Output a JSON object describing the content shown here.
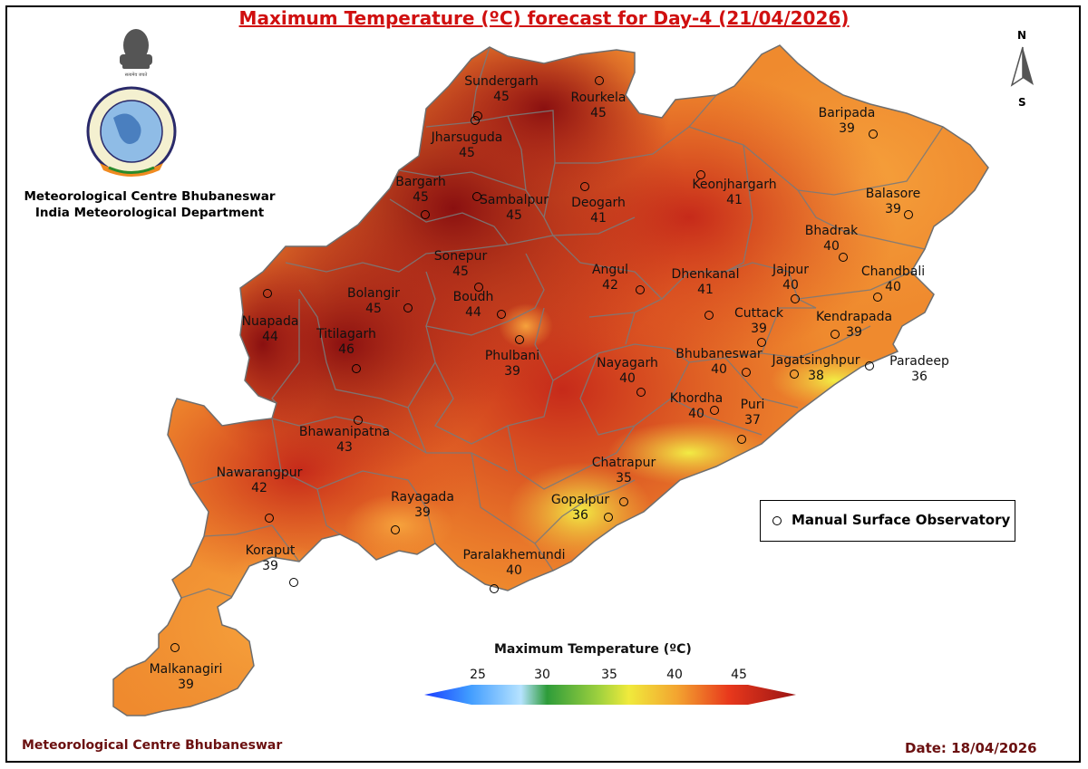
{
  "title": "Maximum Temperature (ºC) forecast for Day-4 (21/04/2026)",
  "org": {
    "line1": "Meteorological Centre Bhubaneswar",
    "line2": "India Meteorological Department"
  },
  "logo": {
    "text": "INDIA METEOROLOGICAL DEPARTMENT",
    "hindi_top": "भारत मौसम विज्ञान विभाग",
    "hindi_bottom": "आदित्यात् जायते वृष्टि:",
    "emblem_text": "सत्यमेव जयते"
  },
  "compass": {
    "north": "N",
    "south": "S"
  },
  "legend": {
    "observatory_label": "Manual Surface Observatory"
  },
  "colorbar": {
    "title": "Maximum Temperature (ºC)",
    "ticks": [
      "25",
      "30",
      "35",
      "40",
      "45"
    ],
    "colors": [
      "#1a3cff",
      "#3f9bff",
      "#b6e3ff",
      "#2e9c3a",
      "#f0ea3c",
      "#f3a430",
      "#e8381c",
      "#9a1414"
    ]
  },
  "cities": [
    {
      "name": "Sundergarh",
      "value": "45"
    },
    {
      "name": "Rourkela",
      "value": "45"
    },
    {
      "name": "Jharsuguda",
      "value": "45"
    },
    {
      "name": "Bargarh",
      "value": "45"
    },
    {
      "name": "Sambalpur",
      "value": "45"
    },
    {
      "name": "Deogarh",
      "value": "41"
    },
    {
      "name": "Keonjhargarh",
      "value": "41"
    },
    {
      "name": "Baripada",
      "value": "39"
    },
    {
      "name": "Balasore",
      "value": "39"
    },
    {
      "name": "Bhadrak",
      "value": "40"
    },
    {
      "name": "Chandbali",
      "value": "40"
    },
    {
      "name": "Sonepur",
      "value": "45"
    },
    {
      "name": "Angul",
      "value": "42"
    },
    {
      "name": "Dhenkanal",
      "value": "41"
    },
    {
      "name": "Jajpur",
      "value": "40"
    },
    {
      "name": "Kendrapada",
      "value": "39"
    },
    {
      "name": "Cuttack",
      "value": "39"
    },
    {
      "name": "Bolangir",
      "value": "45"
    },
    {
      "name": "Boudh",
      "value": "44"
    },
    {
      "name": "Nuapada",
      "value": "44"
    },
    {
      "name": "Titilagarh",
      "value": "46"
    },
    {
      "name": "Phulbani",
      "value": "39"
    },
    {
      "name": "Nayagarh",
      "value": "40"
    },
    {
      "name": "Bhubaneswar",
      "value": "40"
    },
    {
      "name": "Jagatsinghpur",
      "value": "38"
    },
    {
      "name": "Paradeep",
      "value": "36"
    },
    {
      "name": "Khordha",
      "value": "40"
    },
    {
      "name": "Puri",
      "value": "37"
    },
    {
      "name": "Bhawanipatna",
      "value": "43"
    },
    {
      "name": "Nawarangpur",
      "value": "42"
    },
    {
      "name": "Chatrapur",
      "value": "35"
    },
    {
      "name": "Rayagada",
      "value": "39"
    },
    {
      "name": "Gopalpur",
      "value": "36"
    },
    {
      "name": "Koraput",
      "value": "39"
    },
    {
      "name": "Paralakhemundi",
      "value": "40"
    },
    {
      "name": "Malkanagiri",
      "value": "39"
    }
  ],
  "footer": {
    "left": "Meteorological Centre Bhubaneswar",
    "date": "Date: 18/04/2026"
  }
}
